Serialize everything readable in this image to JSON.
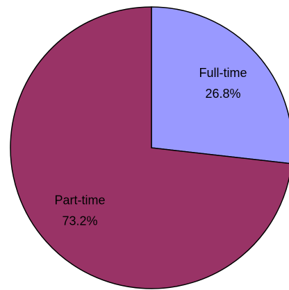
{
  "chart_data": {
    "type": "pie",
    "categories": [
      "Full-time",
      "Part-time"
    ],
    "values": [
      26.8,
      73.2
    ],
    "value_labels": [
      "26.8%",
      "73.2%"
    ],
    "colors": [
      "#9999ff",
      "#993366"
    ]
  }
}
